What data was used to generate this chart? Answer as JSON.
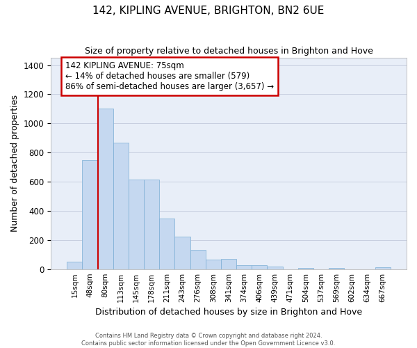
{
  "title1": "142, KIPLING AVENUE, BRIGHTON, BN2 6UE",
  "title2": "Size of property relative to detached houses in Brighton and Hove",
  "xlabel": "Distribution of detached houses by size in Brighton and Hove",
  "ylabel": "Number of detached properties",
  "categories": [
    "15sqm",
    "48sqm",
    "80sqm",
    "113sqm",
    "145sqm",
    "178sqm",
    "211sqm",
    "243sqm",
    "276sqm",
    "308sqm",
    "341sqm",
    "374sqm",
    "406sqm",
    "439sqm",
    "471sqm",
    "504sqm",
    "537sqm",
    "569sqm",
    "602sqm",
    "634sqm",
    "667sqm"
  ],
  "bar_values": [
    50,
    750,
    1100,
    870,
    615,
    615,
    345,
    225,
    130,
    65,
    70,
    25,
    25,
    17,
    0,
    10,
    0,
    10,
    0,
    0,
    15
  ],
  "bar_color": "#c5d8f0",
  "bar_edge_color": "#7aadd4",
  "vline_index": 2,
  "vline_color": "#cc0000",
  "annotation_text": "142 KIPLING AVENUE: 75sqm\n← 14% of detached houses are smaller (579)\n86% of semi-detached houses are larger (3,657) →",
  "annotation_box_edgecolor": "#cc0000",
  "ylim_max": 1450,
  "yticks": [
    0,
    200,
    400,
    600,
    800,
    1000,
    1200,
    1400
  ],
  "background_color": "#e8eef8",
  "grid_color": "#c8cfe0",
  "footer1": "Contains HM Land Registry data © Crown copyright and database right 2024.",
  "footer2": "Contains public sector information licensed under the Open Government Licence v3.0."
}
